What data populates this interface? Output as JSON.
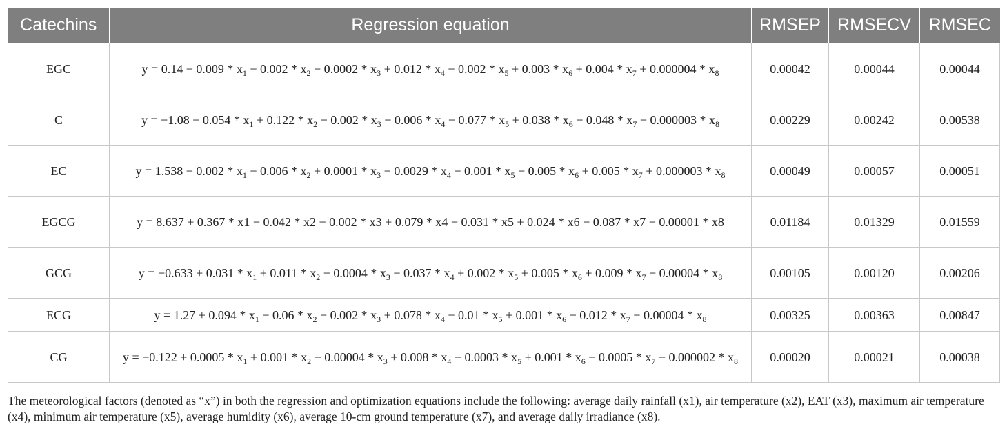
{
  "table": {
    "headers": [
      "Catechins",
      "Regression equation",
      "RMSEP",
      "RMSECV",
      "RMSEC"
    ],
    "rows": [
      {
        "catechin": "EGC",
        "equation": [
          {
            "t": "y = 0.14 − 0.009 * x"
          },
          {
            "s": "1"
          },
          {
            "t": " − 0.002 * x"
          },
          {
            "s": "2"
          },
          {
            "t": " − 0.0002 * x"
          },
          {
            "s": "3"
          },
          {
            "t": " + 0.012 * x"
          },
          {
            "s": "4"
          },
          {
            "t": " − 0.002 * x"
          },
          {
            "s": "5"
          },
          {
            "t": " + 0.003 * x"
          },
          {
            "s": "6"
          },
          {
            "t": " + 0.004 * x"
          },
          {
            "s": "7"
          },
          {
            "t": " + 0.000004 * x"
          },
          {
            "s": "8"
          }
        ],
        "rmsep": "0.00042",
        "rmsecv": "0.00044",
        "rmsec": "0.00044"
      },
      {
        "catechin": "C",
        "equation": [
          {
            "t": "y = −1.08 − 0.054 * x"
          },
          {
            "s": "1"
          },
          {
            "t": " + 0.122 * x"
          },
          {
            "s": "2"
          },
          {
            "t": " − 0.002 * x"
          },
          {
            "s": "3"
          },
          {
            "t": " − 0.006 * x"
          },
          {
            "s": "4"
          },
          {
            "t": " − 0.077 * x"
          },
          {
            "s": "5"
          },
          {
            "t": " + 0.038 * x"
          },
          {
            "s": "6"
          },
          {
            "t": " − 0.048 * x"
          },
          {
            "s": "7"
          },
          {
            "t": " − 0.000003 * x"
          },
          {
            "s": "8"
          }
        ],
        "rmsep": "0.00229",
        "rmsecv": "0.00242",
        "rmsec": "0.00538"
      },
      {
        "catechin": "EC",
        "equation": [
          {
            "t": "y = 1.538 − 0.002 * x"
          },
          {
            "s": "1"
          },
          {
            "t": " − 0.006 * x"
          },
          {
            "s": "2"
          },
          {
            "t": " + 0.0001 * x"
          },
          {
            "s": "3"
          },
          {
            "t": " − 0.0029 * x"
          },
          {
            "s": "4"
          },
          {
            "t": " − 0.001 * x"
          },
          {
            "s": "5"
          },
          {
            "t": " − 0.005 * x"
          },
          {
            "s": "6"
          },
          {
            "t": " + 0.005 * x"
          },
          {
            "s": "7"
          },
          {
            "t": " + 0.000003 * x"
          },
          {
            "s": "8"
          }
        ],
        "rmsep": "0.00049",
        "rmsecv": "0.00057",
        "rmsec": "0.00051"
      },
      {
        "catechin": "EGCG",
        "equation": [
          {
            "t": "y = 8.637 + 0.367 * x1 − 0.042 * x2 − 0.002 * x3 + 0.079 * x4 − 0.031 * x5 + 0.024 * x6 − 0.087 * x7 − 0.00001 * x8"
          }
        ],
        "rmsep": "0.01184",
        "rmsecv": "0.01329",
        "rmsec": "0.01559"
      },
      {
        "catechin": "GCG",
        "equation": [
          {
            "t": "y = −0.633 + 0.031 * x"
          },
          {
            "s": "1"
          },
          {
            "t": " + 0.011 * x"
          },
          {
            "s": "2"
          },
          {
            "t": " − 0.0004 * x"
          },
          {
            "s": "3"
          },
          {
            "t": " + 0.037 * x"
          },
          {
            "s": "4"
          },
          {
            "t": " + 0.002 * x"
          },
          {
            "s": "5"
          },
          {
            "t": " + 0.005 * x"
          },
          {
            "s": "6"
          },
          {
            "t": " + 0.009 * x"
          },
          {
            "s": "7"
          },
          {
            "t": " − 0.00004 * x"
          },
          {
            "s": "8"
          }
        ],
        "rmsep": "0.00105",
        "rmsecv": "0.00120",
        "rmsec": "0.00206"
      },
      {
        "catechin": "ECG",
        "equation": [
          {
            "t": "y = 1.27 + 0.094 * x"
          },
          {
            "s": "1"
          },
          {
            "t": " + 0.06 * x"
          },
          {
            "s": "2"
          },
          {
            "t": " − 0.002 * x"
          },
          {
            "s": "3"
          },
          {
            "t": " + 0.078 * x"
          },
          {
            "s": "4"
          },
          {
            "t": " − 0.01 * x"
          },
          {
            "s": "5"
          },
          {
            "t": " + 0.001 * x"
          },
          {
            "s": "6"
          },
          {
            "t": " − 0.012 * x"
          },
          {
            "s": "7"
          },
          {
            "t": " − 0.00004 * x"
          },
          {
            "s": "8"
          }
        ],
        "rmsep": "0.00325",
        "rmsecv": "0.00363",
        "rmsec": "0.00847"
      },
      {
        "catechin": "CG",
        "equation": [
          {
            "t": "y = −0.122 + 0.0005 * x"
          },
          {
            "s": "1"
          },
          {
            "t": " + 0.001 * x"
          },
          {
            "s": "2"
          },
          {
            "t": " − 0.00004 * x"
          },
          {
            "s": "3"
          },
          {
            "t": " + 0.008 * x"
          },
          {
            "s": "4"
          },
          {
            "t": " − 0.0003 * x"
          },
          {
            "s": "5"
          },
          {
            "t": " + 0.001 * x"
          },
          {
            "s": "6"
          },
          {
            "t": " − 0.0005 * x"
          },
          {
            "s": "7"
          },
          {
            "t": " − 0.000002 * x"
          },
          {
            "s": "8"
          }
        ],
        "rmsep": "0.00020",
        "rmsecv": "0.00021",
        "rmsec": "0.00038"
      }
    ]
  },
  "footnote": "The meteorological factors (denoted as “x”) in both the regression and optimization equations include the following: average daily rainfall (x1), air temperature (x2), EAT (x3), maximum air temperature (x4), minimum air temperature (x5), average humidity (x6), average 10-cm ground temperature (x7), and average daily irradiance (x8).",
  "colors": {
    "header_bg": "#7f7f7f",
    "header_text": "#ffffff",
    "border": "#c8c8c8",
    "text": "#222222"
  }
}
